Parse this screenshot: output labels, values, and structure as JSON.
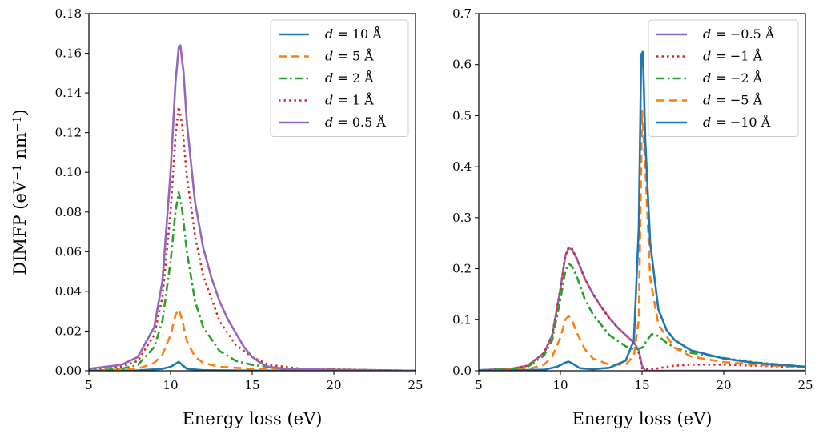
{
  "chart_data": [
    {
      "type": "line",
      "xlabel": "Energy loss (eV)",
      "ylabel": "DIMFP (eV⁻¹ nm⁻¹)",
      "ylabel_parts": {
        "base": "DIMFP (eV",
        "exp1": "−1",
        "mid": " nm",
        "exp2": "−1",
        "end": ")"
      },
      "xlim": [
        5,
        25
      ],
      "ylim": [
        0,
        0.18
      ],
      "xticks": [
        "5",
        "10",
        "15",
        "20",
        "25"
      ],
      "yticks": [
        "0.00",
        "0.02",
        "0.04",
        "0.06",
        "0.08",
        "0.10",
        "0.12",
        "0.14",
        "0.16",
        "0.18"
      ],
      "grid": false,
      "legend_position": "top-right",
      "series": [
        {
          "name": "d = 10 Å",
          "var": "d",
          "rhs": " = 10 Å",
          "color": "#1f77b4",
          "dash": "solid",
          "x": [
            5,
            8,
            9.5,
            10.0,
            10.3,
            10.5,
            10.7,
            11.0,
            12,
            15,
            25
          ],
          "y": [
            0,
            0.0002,
            0.001,
            0.002,
            0.0035,
            0.0045,
            0.003,
            0.001,
            0.0003,
            0.0001,
            0
          ]
        },
        {
          "name": "d = 5 Å",
          "var": "d",
          "rhs": " = 5 Å",
          "color": "#ff7f0e",
          "dash": "dashed",
          "x": [
            5,
            8,
            9,
            9.5,
            10.0,
            10.3,
            10.5,
            10.7,
            11.0,
            11.5,
            12,
            13,
            15,
            25
          ],
          "y": [
            0,
            0.001,
            0.004,
            0.008,
            0.018,
            0.028,
            0.031,
            0.026,
            0.015,
            0.007,
            0.004,
            0.002,
            0.001,
            0
          ]
        },
        {
          "name": "d = 2 Å",
          "var": "d",
          "rhs": " = 2 Å",
          "color": "#2ca02c",
          "dash": "dashdot",
          "x": [
            5,
            7,
            8,
            9,
            9.5,
            10.0,
            10.3,
            10.5,
            10.7,
            11.0,
            11.5,
            12,
            13,
            14,
            15,
            17,
            25
          ],
          "y": [
            0,
            0.001,
            0.003,
            0.012,
            0.025,
            0.055,
            0.08,
            0.09,
            0.082,
            0.06,
            0.035,
            0.022,
            0.01,
            0.005,
            0.003,
            0.001,
            0
          ]
        },
        {
          "name": "d = 1 Å",
          "var": "d",
          "rhs": " = 1 Å",
          "color": "#d62728",
          "dash": "dotted",
          "x": [
            5,
            7,
            8,
            9,
            9.5,
            10.0,
            10.3,
            10.5,
            10.7,
            11.0,
            11.5,
            12,
            13,
            14,
            15,
            16,
            18,
            25
          ],
          "y": [
            0.001,
            0.002,
            0.005,
            0.018,
            0.037,
            0.08,
            0.118,
            0.133,
            0.125,
            0.098,
            0.068,
            0.048,
            0.025,
            0.013,
            0.007,
            0.003,
            0.001,
            0
          ]
        },
        {
          "name": "d = 0.5 Å",
          "var": "d",
          "rhs": " = 0.5 Å",
          "color": "#9467bd",
          "dash": "solid",
          "x": [
            5,
            6,
            7,
            8,
            9,
            9.5,
            10.0,
            10.3,
            10.5,
            10.6,
            10.8,
            11.0,
            11.5,
            12,
            12.5,
            13,
            13.5,
            14,
            14.5,
            15,
            15.5,
            16,
            17,
            20,
            25
          ],
          "y": [
            0.001,
            0.002,
            0.003,
            0.007,
            0.022,
            0.045,
            0.1,
            0.145,
            0.163,
            0.164,
            0.15,
            0.125,
            0.085,
            0.062,
            0.047,
            0.035,
            0.026,
            0.019,
            0.012,
            0.007,
            0.004,
            0.002,
            0.001,
            0.0005,
            0
          ]
        }
      ]
    },
    {
      "type": "line",
      "xlabel": "Energy loss (eV)",
      "ylabel": "",
      "xlim": [
        5,
        25
      ],
      "ylim": [
        0,
        0.7
      ],
      "xticks": [
        "5",
        "10",
        "15",
        "20",
        "25"
      ],
      "yticks": [
        "0.0",
        "0.1",
        "0.2",
        "0.3",
        "0.4",
        "0.5",
        "0.6",
        "0.7"
      ],
      "grid": false,
      "legend_position": "top-right",
      "series": [
        {
          "name": "d = −0.5 Å",
          "var": "d",
          "rhs": " = −0.5 Å",
          "color": "#9467bd",
          "dash": "solid",
          "x": [
            5,
            7,
            8,
            9,
            9.5,
            10.0,
            10.3,
            10.5,
            10.7,
            11.0,
            11.5,
            12,
            12.5,
            13,
            13.5,
            14,
            14.5,
            14.8,
            15.0,
            15.2,
            15.5,
            16,
            17,
            20,
            25
          ],
          "y": [
            0.001,
            0.004,
            0.01,
            0.035,
            0.07,
            0.16,
            0.225,
            0.24,
            0.238,
            0.22,
            0.18,
            0.15,
            0.125,
            0.103,
            0.085,
            0.07,
            0.055,
            0.04,
            0.01,
            0,
            0,
            0,
            0,
            0,
            0
          ]
        },
        {
          "name": "d = −1 Å",
          "var": "d",
          "rhs": " = −1 Å",
          "color": "#d62728",
          "dash": "dotted",
          "x": [
            5,
            7,
            8,
            9,
            9.5,
            10.0,
            10.3,
            10.5,
            10.7,
            11.0,
            11.5,
            12,
            12.5,
            13,
            13.5,
            14,
            14.5,
            14.8,
            15.0,
            15.5,
            16,
            17,
            18,
            20,
            22,
            25
          ],
          "y": [
            0.001,
            0.004,
            0.01,
            0.035,
            0.07,
            0.16,
            0.225,
            0.242,
            0.24,
            0.22,
            0.18,
            0.15,
            0.125,
            0.103,
            0.085,
            0.07,
            0.055,
            0.035,
            0.005,
            0.003,
            0.005,
            0.01,
            0.012,
            0.012,
            0.01,
            0.007
          ]
        },
        {
          "name": "d = −2 Å",
          "var": "d",
          "rhs": " = −2 Å",
          "color": "#2ca02c",
          "dash": "dashdot",
          "x": [
            5,
            7,
            8,
            9,
            9.5,
            10.0,
            10.3,
            10.5,
            10.7,
            11.0,
            11.5,
            12,
            13,
            14,
            14.5,
            15.0,
            15.3,
            15.6,
            16,
            16.5,
            17,
            18,
            20,
            22,
            25
          ],
          "y": [
            0.001,
            0.003,
            0.008,
            0.03,
            0.06,
            0.14,
            0.195,
            0.21,
            0.205,
            0.185,
            0.14,
            0.11,
            0.07,
            0.048,
            0.042,
            0.045,
            0.06,
            0.072,
            0.068,
            0.055,
            0.045,
            0.035,
            0.025,
            0.016,
            0.008
          ]
        },
        {
          "name": "d = −5 Å",
          "var": "d",
          "rhs": " = −5 Å",
          "color": "#ff7f0e",
          "dash": "dashed",
          "x": [
            5,
            8,
            9,
            9.5,
            10.0,
            10.3,
            10.5,
            10.7,
            11.0,
            11.5,
            12,
            13,
            14,
            14.5,
            14.8,
            15.0,
            15.2,
            15.5,
            16,
            17,
            18,
            20,
            22,
            25
          ],
          "y": [
            0,
            0.003,
            0.012,
            0.028,
            0.065,
            0.1,
            0.107,
            0.1,
            0.075,
            0.042,
            0.024,
            0.012,
            0.012,
            0.03,
            0.1,
            0.51,
            0.4,
            0.18,
            0.09,
            0.045,
            0.028,
            0.017,
            0.012,
            0.007
          ]
        },
        {
          "name": "d = −10 Å",
          "var": "d",
          "rhs": " = −10 Å",
          "color": "#1f77b4",
          "dash": "solid",
          "x": [
            5,
            9,
            9.8,
            10.3,
            10.5,
            10.7,
            11.2,
            12,
            13,
            14,
            14.5,
            14.8,
            14.95,
            15.05,
            15.2,
            15.5,
            16,
            16.5,
            17,
            18,
            20,
            22,
            25
          ],
          "y": [
            0,
            0.002,
            0.008,
            0.016,
            0.018,
            0.015,
            0.005,
            0.003,
            0.006,
            0.02,
            0.06,
            0.28,
            0.62,
            0.625,
            0.45,
            0.25,
            0.12,
            0.08,
            0.06,
            0.04,
            0.024,
            0.015,
            0.008
          ]
        }
      ]
    }
  ]
}
